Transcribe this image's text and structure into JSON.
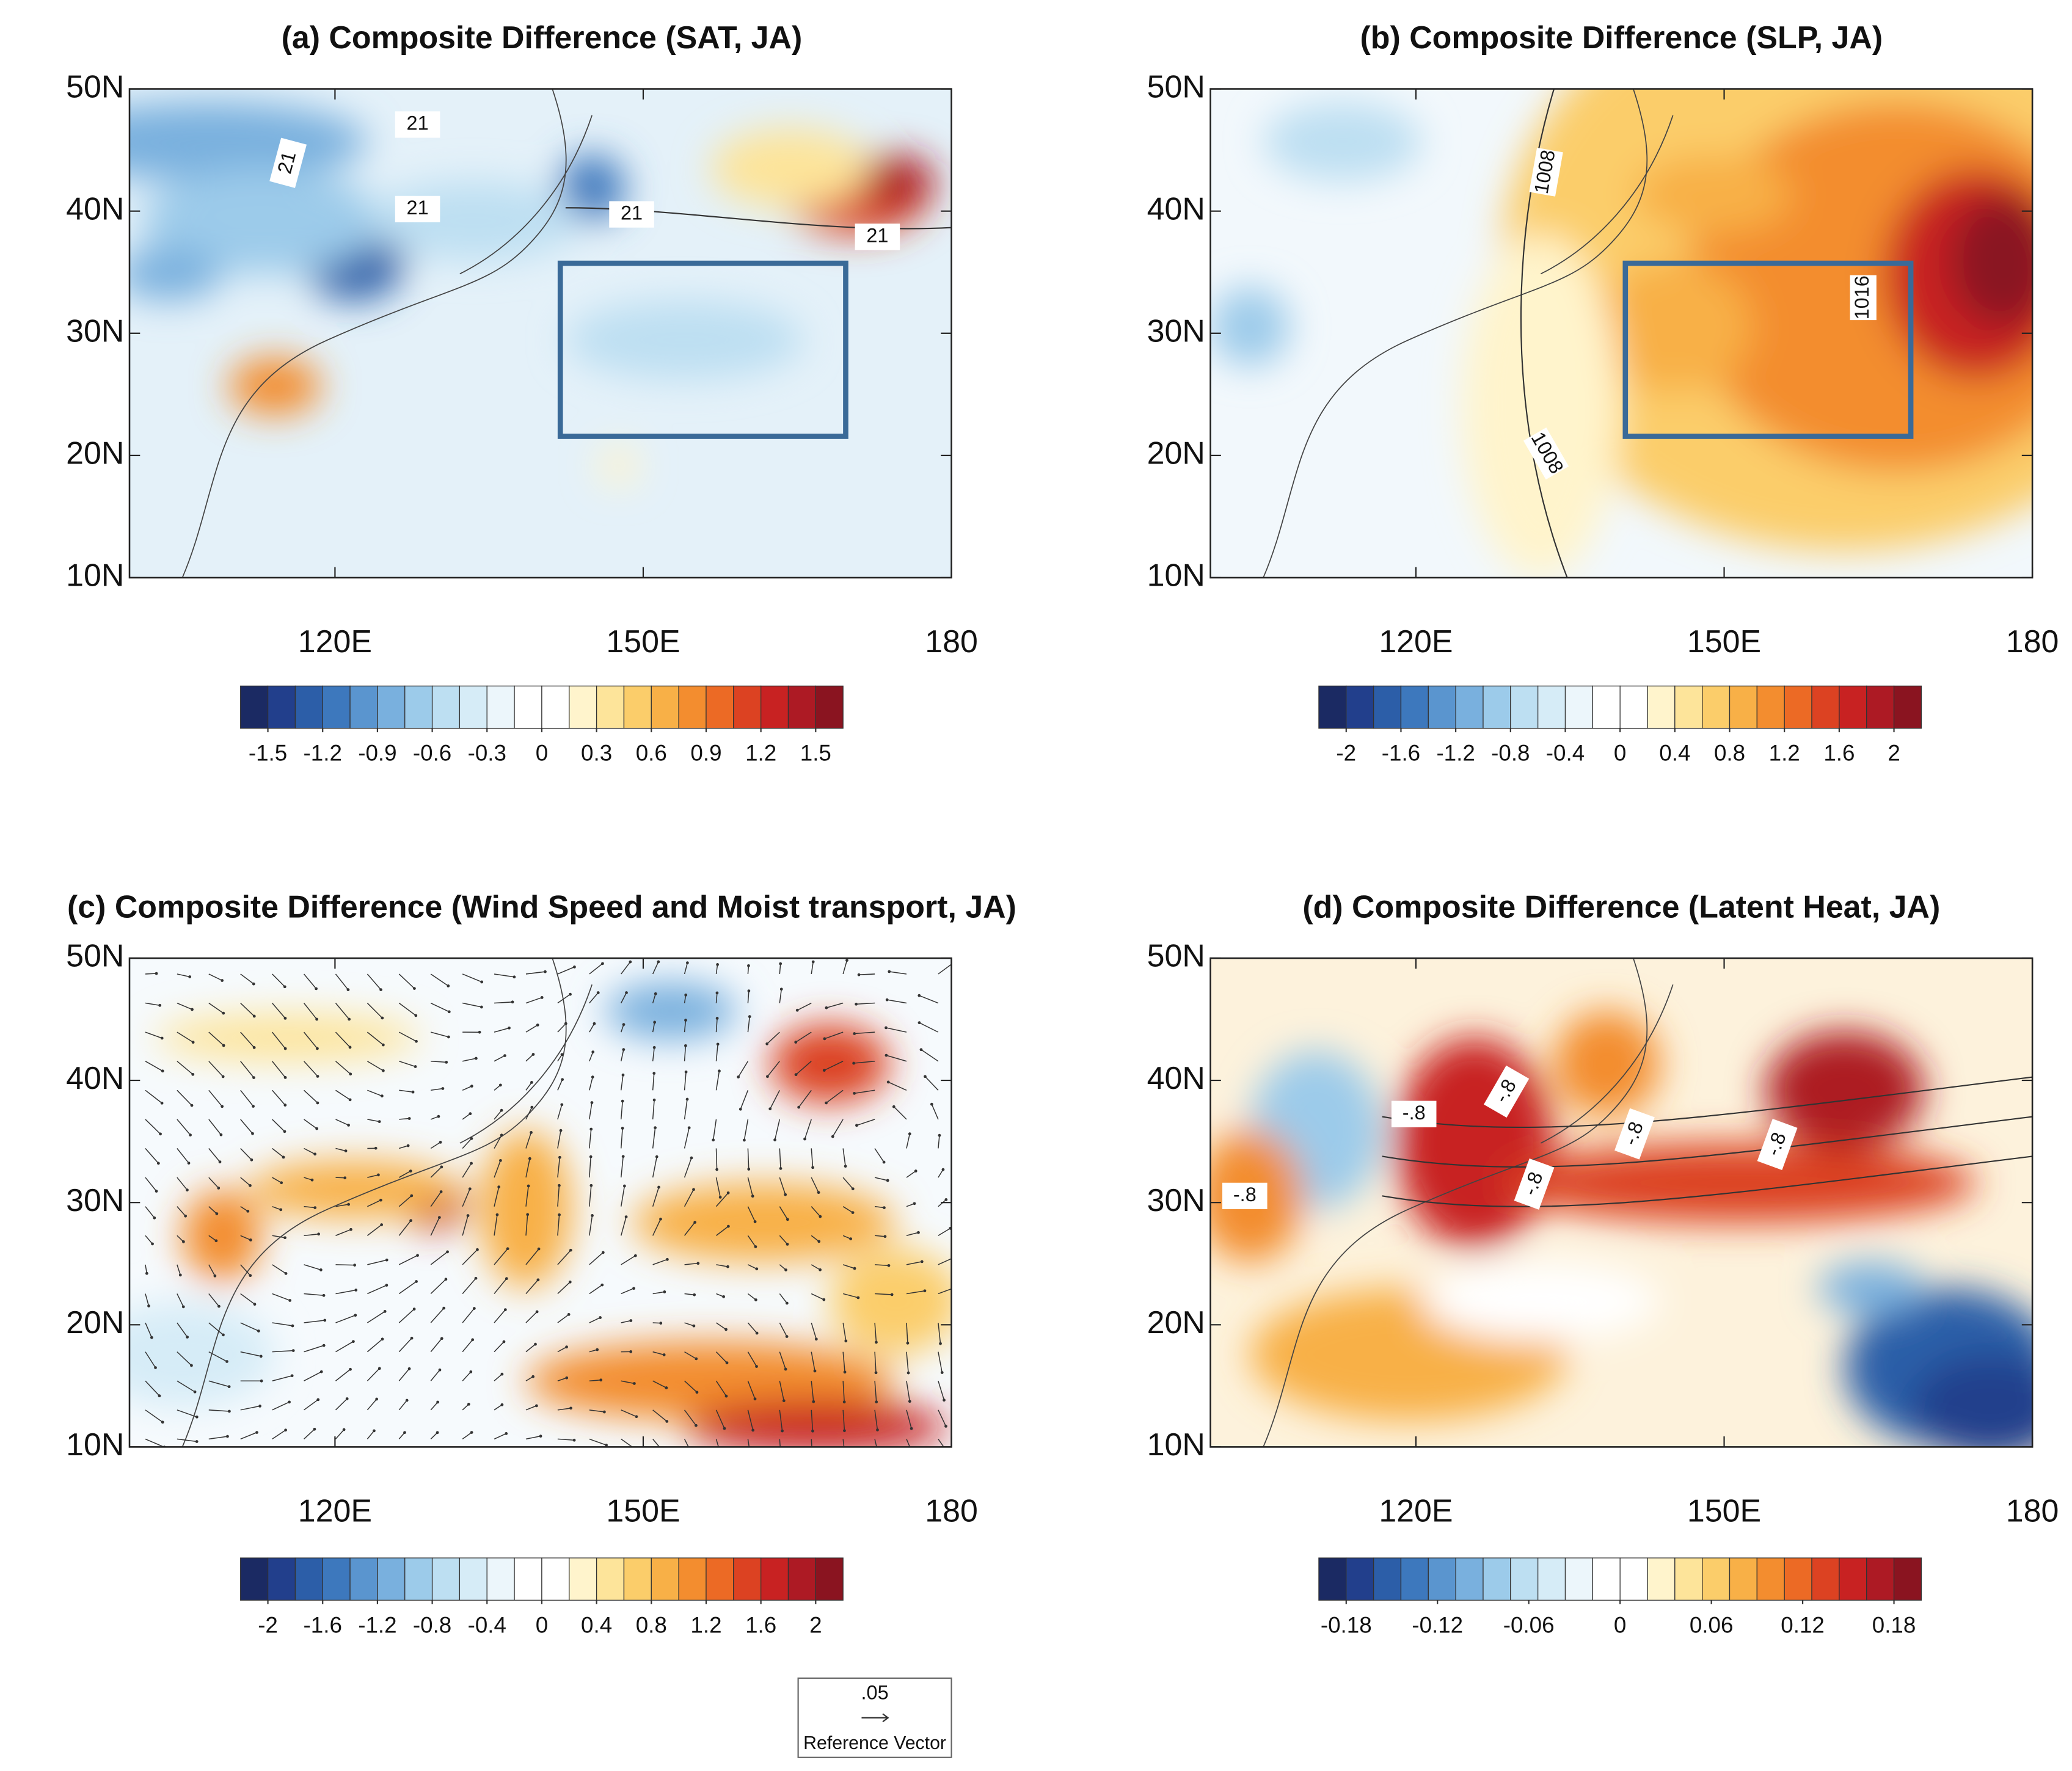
{
  "map": {
    "xlim": [
      100,
      180
    ],
    "ylim": [
      10,
      50
    ],
    "xticks": [
      {
        "value": 120,
        "label": "120E"
      },
      {
        "value": 150,
        "label": "150E"
      },
      180
    ],
    "yticks": [
      {
        "value": 50,
        "label": "50N"
      },
      {
        "value": 40,
        "label": "40N"
      },
      {
        "value": 30,
        "label": "30N"
      },
      {
        "value": 20,
        "label": "20N"
      },
      {
        "value": 10,
        "label": "10N"
      }
    ]
  },
  "colorbar_colors": [
    "#1b2a63",
    "#223f8c",
    "#2c5ea8",
    "#3d78bd",
    "#5a95cf",
    "#79b0de",
    "#9ccbea",
    "#bddff2",
    "#d6ecf7",
    "#ecf6fb",
    "#ffffff",
    "#ffffff",
    "#fff4cc",
    "#fde49a",
    "#fbcd6a",
    "#f8b047",
    "#f38d2f",
    "#ec6a25",
    "#dc4222",
    "#c82222",
    "#ad1a24",
    "#8a1420"
  ],
  "panels": [
    {
      "title": "(a) Composite Difference (SAT, JA)",
      "colorbar_ticks": [
        -1.5,
        -1.2,
        -0.9,
        -0.6,
        -0.3,
        0,
        0.3,
        0.6,
        0.9,
        1.2,
        1.5
      ],
      "contour_labels": [
        "21",
        "21",
        "21",
        "21",
        "21"
      ]
    },
    {
      "title": "(b) Composite Difference (SLP, JA)",
      "colorbar_ticks": [
        -2,
        -1.6,
        -1.2,
        -0.8,
        -0.4,
        0,
        0.4,
        0.8,
        1.2,
        1.6,
        2
      ],
      "contour_labels": [
        "1008",
        "1008",
        "1016"
      ]
    },
    {
      "title": "(c) Composite Difference (Wind Speed and Moist transport, JA)",
      "colorbar_ticks": [
        -2,
        -1.6,
        -1.2,
        -0.8,
        -0.4,
        0,
        0.4,
        0.8,
        1.2,
        1.6,
        2
      ],
      "contour_labels": []
    },
    {
      "title": "(d) Composite Difference (Latent Heat, JA)",
      "colorbar_ticks": [
        -0.18,
        -0.12,
        -0.06,
        0,
        0.06,
        0.12,
        0.18
      ],
      "contour_labels": [
        "-.8",
        "-.8",
        "-.8",
        "-.8",
        "-.8",
        "-.8"
      ]
    }
  ],
  "reference_vector": {
    "magnitude": ".05",
    "label": "Reference Vector"
  }
}
